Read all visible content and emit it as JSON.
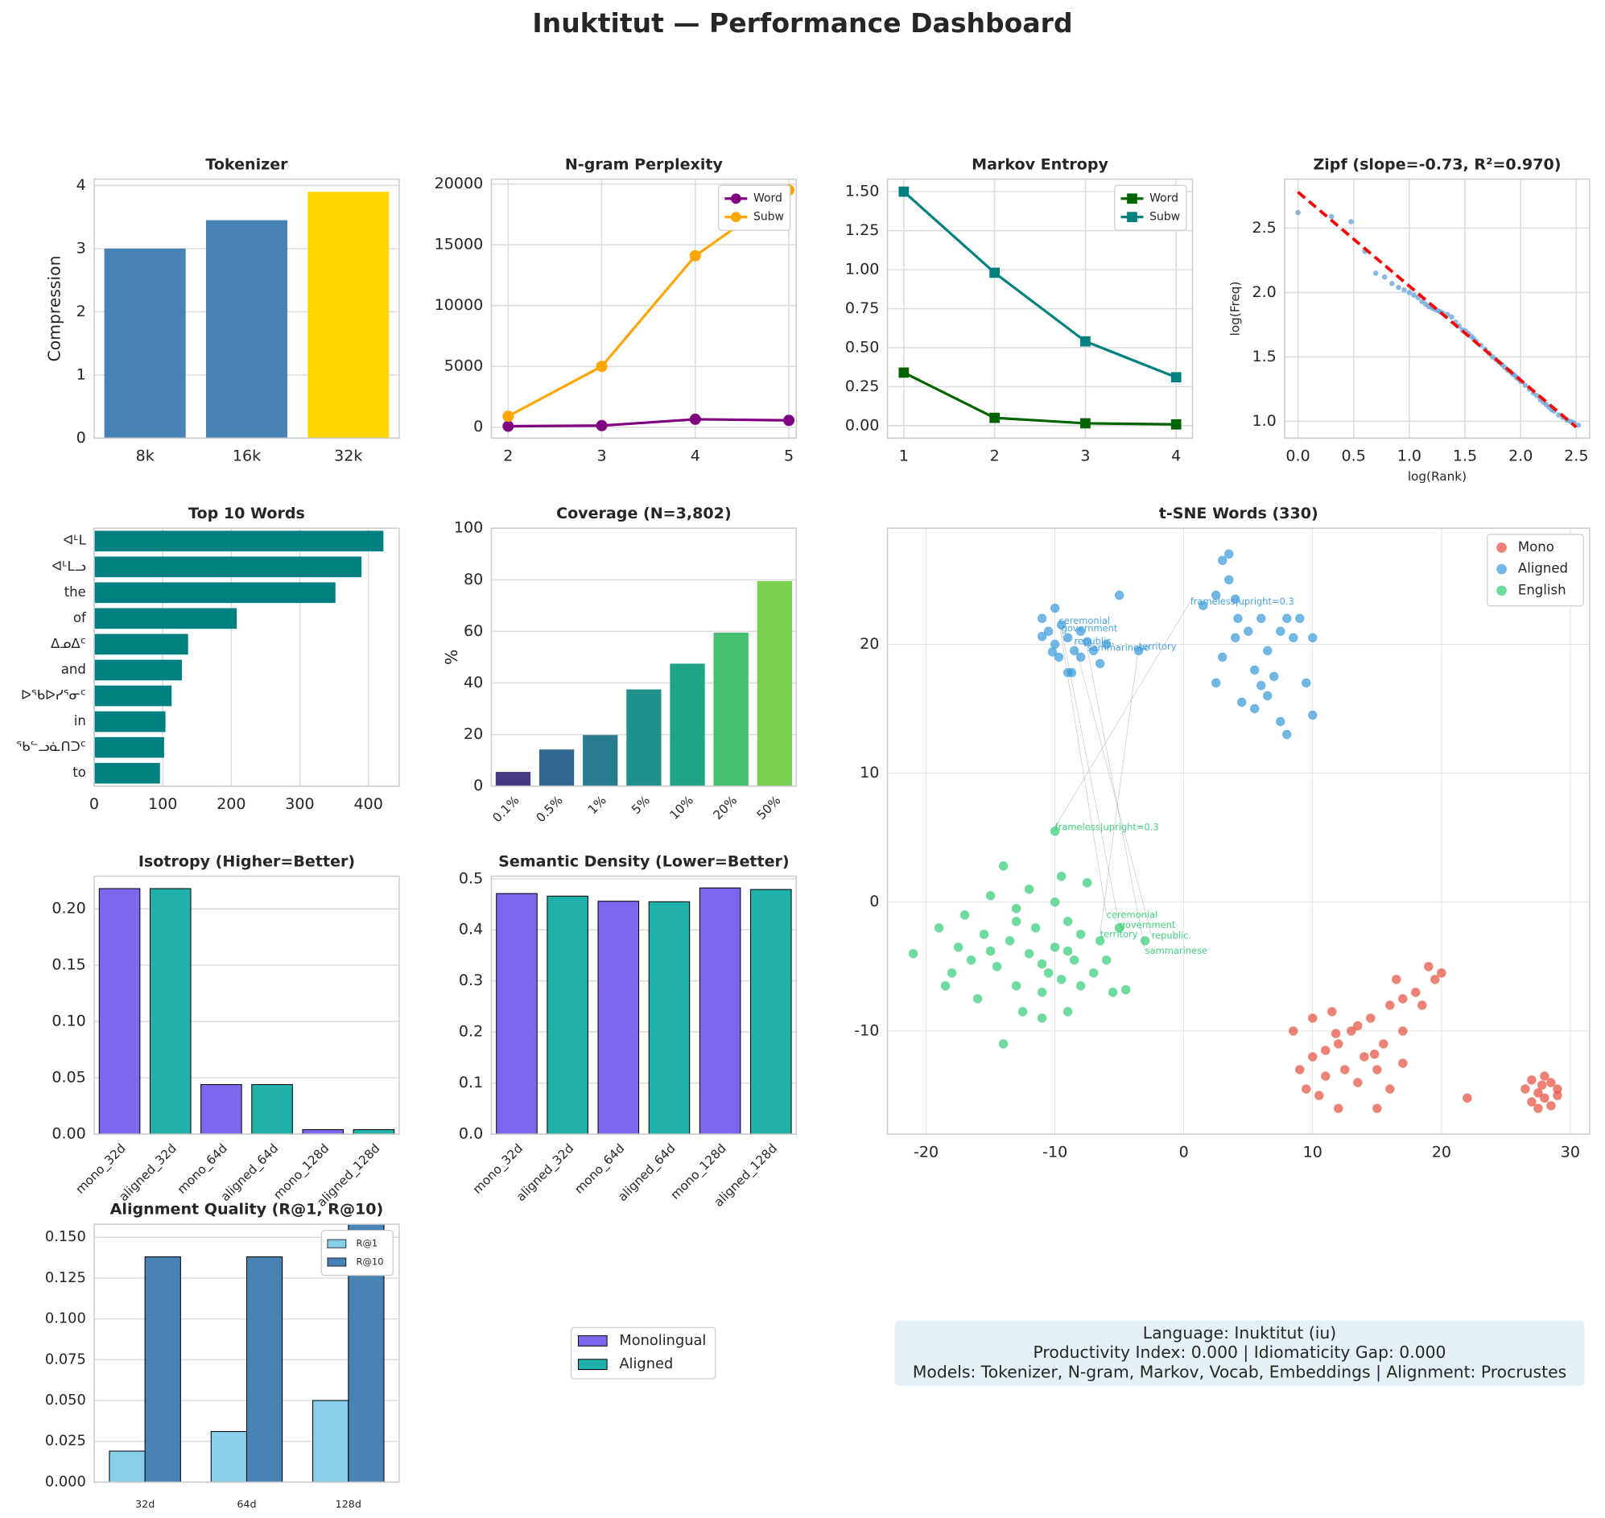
{
  "title": "Inuktitut — Performance Dashboard",
  "legend": [
    {
      "name": "Monolingual",
      "color": "#7b68ee"
    },
    {
      "name": "Aligned",
      "color": "#20b2aa"
    }
  ],
  "info": [
    "Language: Inuktitut (iu)",
    "Productivity Index: 0.000  |  Idiomaticity Gap: 0.000",
    "Models: Tokenizer, N-gram, Markov, Vocab, Embeddings  |  Alignment: Procrustes"
  ],
  "chart_data": [
    {
      "type": "bar",
      "title": "Tokenizer",
      "ylabel": "Compression",
      "categories": [
        "8k",
        "16k",
        "32k"
      ],
      "values": [
        3.0,
        3.45,
        3.9
      ],
      "colors": [
        "#4682b4",
        "#4682b4",
        "#ffd700"
      ],
      "ylim": [
        0,
        4.1
      ],
      "yticks": [
        0,
        1,
        2,
        3,
        4
      ],
      "grid": true
    },
    {
      "type": "line",
      "title": "N-gram Perplexity",
      "x": [
        2,
        3,
        4,
        5
      ],
      "series": [
        {
          "name": "Word",
          "color": "#800080",
          "marker": "circle",
          "values": [
            80,
            130,
            650,
            560
          ]
        },
        {
          "name": "Subw",
          "color": "#ffa500",
          "marker": "circle",
          "values": [
            900,
            5000,
            14100,
            19500
          ]
        }
      ],
      "xlim": [
        1.82,
        5.08
      ],
      "xticks": [
        2,
        3,
        4,
        5
      ],
      "ylim": [
        -900,
        20400
      ],
      "yticks": [
        0,
        5000,
        10000,
        15000,
        20000
      ],
      "legend": "upper right",
      "grid": true
    },
    {
      "type": "line",
      "title": "Markov Entropy",
      "x": [
        1,
        2,
        3,
        4
      ],
      "series": [
        {
          "name": "Word",
          "color": "#006400",
          "marker": "square",
          "values": [
            0.34,
            0.05,
            0.015,
            0.008
          ]
        },
        {
          "name": "Subw",
          "color": "#008080",
          "marker": "square",
          "values": [
            1.5,
            0.98,
            0.54,
            0.31
          ]
        }
      ],
      "xlim": [
        0.82,
        4.18
      ],
      "xticks": [
        1,
        2,
        3,
        4
      ],
      "ylim": [
        -0.08,
        1.58
      ],
      "yticks": [
        {
          "value": 0,
          "label": "0.00"
        },
        {
          "value": 0.25,
          "label": "0.25"
        },
        {
          "value": 0.5,
          "label": "0.50"
        },
        {
          "value": 0.75,
          "label": "0.75"
        },
        {
          "value": 1,
          "label": "1.00"
        },
        {
          "value": 1.25,
          "label": "1.25"
        },
        {
          "value": 1.5,
          "label": "1.50"
        }
      ],
      "legend": "upper right",
      "grid": true
    },
    {
      "type": "scatter",
      "title": "Zipf (slope=-0.73, R²=0.970)",
      "xlabel": "log(Rank)",
      "ylabel": "log(Freq)",
      "color": "#5b9bd5",
      "x": [
        0,
        0.301,
        0.477,
        0.602,
        0.699,
        0.778,
        0.845,
        0.903,
        0.954,
        1.0,
        1.041,
        1.079,
        1.114,
        1.146,
        1.176,
        1.204,
        1.23,
        1.255,
        1.279,
        1.301,
        1.342,
        1.38,
        1.415,
        1.447,
        1.477,
        1.505,
        1.531,
        1.556,
        1.58,
        1.602,
        1.643,
        1.681,
        1.716,
        1.748,
        1.778,
        1.806,
        1.833,
        1.857,
        1.881,
        1.903,
        1.924,
        1.944,
        1.964,
        1.982,
        2.0,
        2.041,
        2.079,
        2.114,
        2.146,
        2.176,
        2.204,
        2.23,
        2.255,
        2.279,
        2.301,
        2.342,
        2.38,
        2.415,
        2.447,
        2.477,
        2.519
      ],
      "y": [
        2.62,
        2.59,
        2.55,
        2.32,
        2.15,
        2.12,
        2.07,
        2.04,
        2.02,
        2.0,
        1.98,
        1.96,
        1.93,
        1.91,
        1.89,
        1.88,
        1.87,
        1.86,
        1.85,
        1.84,
        1.83,
        1.81,
        1.77,
        1.74,
        1.71,
        1.7,
        1.68,
        1.66,
        1.64,
        1.62,
        1.59,
        1.56,
        1.53,
        1.5,
        1.48,
        1.46,
        1.44,
        1.42,
        1.4,
        1.39,
        1.37,
        1.36,
        1.34,
        1.33,
        1.31,
        1.28,
        1.25,
        1.22,
        1.2,
        1.17,
        1.15,
        1.13,
        1.11,
        1.09,
        1.08,
        1.05,
        1.03,
        1.01,
        1.0,
        0.99,
        0.97
      ],
      "fit": {
        "x": [
          0,
          2.5
        ],
        "y": [
          2.78,
          0.955
        ],
        "color": "#ff0000"
      },
      "xlim": [
        -0.12,
        2.62
      ],
      "xticks": [
        {
          "value": 0,
          "label": "0.0"
        },
        {
          "value": 0.5,
          "label": "0.5"
        },
        {
          "value": 1,
          "label": "1.0"
        },
        {
          "value": 1.5,
          "label": "1.5"
        },
        {
          "value": 2,
          "label": "2.0"
        },
        {
          "value": 2.5,
          "label": "2.5"
        }
      ],
      "ylim": [
        0.87,
        2.88
      ],
      "yticks": [
        {
          "value": 1,
          "label": "1.0"
        },
        {
          "value": 1.5,
          "label": "1.5"
        },
        {
          "value": 2,
          "label": "2.0"
        },
        {
          "value": 2.5,
          "label": "2.5"
        }
      ],
      "grid": true
    },
    {
      "type": "barh",
      "title": "Top 10 Words",
      "categories": [
        "ᐊᒻᒪ",
        "ᐊᒻᒪᓗ",
        "the",
        "of",
        "ᐃᓄᐃᑦ",
        "and",
        "ᐅᖃᐅᓯᕐᓂᑦ",
        "in",
        "ᖃᓪᓗᓈᑎᑐᑦ",
        "to"
      ],
      "values": [
        422,
        390,
        352,
        208,
        137,
        128,
        113,
        104,
        102,
        96
      ],
      "color": "#008080",
      "xlim": [
        0,
        445
      ],
      "xticks": [
        0,
        100,
        200,
        300,
        400
      ],
      "grid": true
    },
    {
      "type": "bar",
      "title": "Coverage (N=3,802)",
      "ylabel": "%",
      "categories": [
        "0.1%",
        "0.5%",
        "1%",
        "5%",
        "10%",
        "20%",
        "50%"
      ],
      "values": [
        5.5,
        14.2,
        19.8,
        37.5,
        47.5,
        59.5,
        79.5
      ],
      "colors": [
        "#443983",
        "#31688e",
        "#287c8e",
        "#21918c",
        "#20a386",
        "#44bf70",
        "#7ad151"
      ],
      "ylim": [
        0,
        100
      ],
      "yticks": [
        0,
        20,
        40,
        60,
        80,
        100
      ],
      "xtick_rotation": 45,
      "grid": true
    },
    {
      "type": "scatter",
      "title": "t-SNE Words (330)",
      "legend": "upper right",
      "grid": true,
      "series": [
        {
          "name": "Mono",
          "color": "#e74c3c",
          "x": [
            8.5,
            9,
            9.5,
            10,
            10,
            10.5,
            11,
            11,
            11.5,
            12,
            12,
            12.5,
            13,
            13.5,
            14,
            14.5,
            15,
            15,
            15.5,
            16,
            16,
            16.5,
            17,
            17,
            17,
            18,
            18.5,
            19,
            19.5,
            20,
            22,
            13.5,
            14.8,
            11.8,
            26.5,
            27,
            27,
            27.5,
            27.5,
            28,
            28,
            28.5,
            28.5,
            29,
            29,
            27.8
          ],
          "y": [
            -10,
            -13,
            -14.5,
            -12,
            -9,
            -15,
            -11.5,
            -13.5,
            -8.5,
            -11,
            -16,
            -13,
            -10,
            -14,
            -12,
            -9,
            -16,
            -13,
            -11,
            -8,
            -14.5,
            -6,
            -10,
            -12.5,
            -7.5,
            -7,
            -8,
            -5,
            -6,
            -5.5,
            -15.2,
            -9.6,
            -11.8,
            -10.2,
            -14.5,
            -15.5,
            -13.8,
            -16,
            -14.8,
            -13.5,
            -15.2,
            -14,
            -15.8,
            -14.5,
            -15,
            -14.2
          ]
        },
        {
          "name": "Aligned",
          "color": "#3498db",
          "x": [
            -11,
            -10.5,
            -10,
            -10,
            -9.5,
            -9,
            -9,
            -8.5,
            -8,
            -8,
            -7.5,
            -7,
            -6.5,
            -6,
            -11,
            -10.2,
            -9.7,
            -8.7,
            -5,
            -3.5,
            1.5,
            2.5,
            3,
            3.5,
            3.5,
            4,
            4.2,
            5,
            5.5,
            6,
            6.5,
            6.5,
            7,
            7.5,
            7.5,
            8,
            8,
            8.5,
            9,
            9.5,
            10,
            10,
            3,
            2.5,
            4.5,
            5.5,
            6,
            4
          ],
          "y": [
            22,
            21,
            22.8,
            20,
            21.5,
            20.5,
            17.8,
            19.5,
            21,
            19,
            20.2,
            19.5,
            18.5,
            20,
            20.6,
            19.4,
            19,
            17.8,
            23.8,
            19.5,
            23,
            23.8,
            26.5,
            27,
            25,
            23.5,
            22,
            21,
            18,
            22,
            19.5,
            16,
            17.5,
            21,
            14,
            22,
            13,
            20.5,
            22,
            17,
            20.5,
            14.5,
            19,
            17,
            15.5,
            15,
            16.8,
            20.5
          ]
        },
        {
          "name": "English",
          "color": "#2ecc71",
          "x": [
            -21,
            -19,
            -18.5,
            -18,
            -17.5,
            -17,
            -16.5,
            -16,
            -15.5,
            -15,
            -14.5,
            -14,
            -14,
            -13.5,
            -13,
            -13,
            -12.5,
            -12,
            -12,
            -11.5,
            -11,
            -11,
            -10.5,
            -10,
            -10,
            -9.5,
            -9.5,
            -9,
            -9,
            -8.5,
            -8,
            -8,
            -7.5,
            -7,
            -6.5,
            -6,
            -5.5,
            -5,
            -4.5,
            -3,
            -13,
            -15,
            -11,
            -9,
            -10
          ],
          "y": [
            -4,
            -2,
            -6.5,
            -5.5,
            -3.5,
            -1,
            -4.5,
            -7.5,
            -2.5,
            0.5,
            -5,
            2.8,
            -11,
            -3,
            -6.5,
            -1.5,
            -8.5,
            -4,
            1,
            -2,
            -7,
            -9,
            -5.5,
            -3.5,
            0,
            -6,
            2,
            -1.5,
            -8.5,
            -4.5,
            -2.5,
            -6.5,
            1.5,
            -5.5,
            -3,
            -4.5,
            -7,
            -2,
            -6.8,
            -3,
            -0.5,
            -3.8,
            -4.8,
            -3.8,
            5.5
          ]
        }
      ],
      "annotations": [
        {
          "text": "ceremonial",
          "x": -9.7,
          "y": 21.8,
          "series": 1
        },
        {
          "text": "government",
          "x": -9.5,
          "y": 21.2,
          "series": 1
        },
        {
          "text": "republic.",
          "x": -8.5,
          "y": 20.2,
          "series": 1
        },
        {
          "text": "sammarinese",
          "x": -7.5,
          "y": 19.7,
          "series": 1
        },
        {
          "text": "territory",
          "x": -3.5,
          "y": 19.8,
          "series": 1
        },
        {
          "text": "frameless|upright=0.3",
          "x": 0.5,
          "y": 23.3,
          "series": 1
        },
        {
          "text": "frameless|upright=0.3",
          "x": -10,
          "y": 5.8,
          "series": 2
        },
        {
          "text": "ceremonial",
          "x": -6,
          "y": -1,
          "series": 2
        },
        {
          "text": "government",
          "x": -5,
          "y": -1.8,
          "series": 2
        },
        {
          "text": "republic.",
          "x": -2.5,
          "y": -2.6,
          "series": 2
        },
        {
          "text": "sammarinese",
          "x": -3,
          "y": -3.8,
          "series": 2
        },
        {
          "text": "territory",
          "x": -6.5,
          "y": -2.5,
          "series": 2
        }
      ],
      "xlim": [
        -23,
        31.5
      ],
      "xticks": [
        -20,
        -10,
        0,
        10,
        20,
        30
      ],
      "ylim": [
        -18,
        29
      ],
      "yticks": [
        -10,
        0,
        10,
        20
      ]
    },
    {
      "type": "bar",
      "title": "Isotropy (Higher=Better)",
      "categories": [
        "mono_32d",
        "aligned_32d",
        "mono_64d",
        "aligned_64d",
        "mono_128d",
        "aligned_128d"
      ],
      "values": [
        0.218,
        0.218,
        0.044,
        0.044,
        0.004,
        0.004
      ],
      "colors": [
        "#7b68ee",
        "#20b2aa",
        "#7b68ee",
        "#20b2aa",
        "#7b68ee",
        "#20b2aa"
      ],
      "edgecolor": "#000000",
      "ylim": [
        0,
        0.229
      ],
      "yticks": [
        {
          "value": 0,
          "label": "0.00"
        },
        {
          "value": 0.05,
          "label": "0.05"
        },
        {
          "value": 0.1,
          "label": "0.10"
        },
        {
          "value": 0.15,
          "label": "0.15"
        },
        {
          "value": 0.2,
          "label": "0.20"
        }
      ],
      "xtick_rotation": 45,
      "grid": true
    },
    {
      "type": "bar",
      "title": "Semantic Density (Lower=Better)",
      "categories": [
        "mono_32d",
        "aligned_32d",
        "mono_64d",
        "aligned_64d",
        "mono_128d",
        "aligned_128d"
      ],
      "values": [
        0.471,
        0.466,
        0.456,
        0.455,
        0.482,
        0.479
      ],
      "colors": [
        "#7b68ee",
        "#20b2aa",
        "#7b68ee",
        "#20b2aa",
        "#7b68ee",
        "#20b2aa"
      ],
      "edgecolor": "#000000",
      "ylim": [
        0,
        0.505
      ],
      "yticks": [
        {
          "value": 0,
          "label": "0.0"
        },
        {
          "value": 0.1,
          "label": "0.1"
        },
        {
          "value": 0.2,
          "label": "0.2"
        },
        {
          "value": 0.3,
          "label": "0.3"
        },
        {
          "value": 0.4,
          "label": "0.4"
        },
        {
          "value": 0.5,
          "label": "0.5"
        }
      ],
      "xtick_rotation": 45,
      "grid": true
    },
    {
      "type": "grouped_bar",
      "title": "Alignment Quality (R@1, R@10)",
      "categories": [
        "32d",
        "64d",
        "128d"
      ],
      "series": [
        {
          "name": "R@1",
          "color": "#87ceeb",
          "values": [
            0.019,
            0.031,
            0.05
          ]
        },
        {
          "name": "R@10",
          "color": "#4682b4",
          "values": [
            0.138,
            0.138,
            0.16
          ]
        }
      ],
      "edgecolor": "#000000",
      "ylim": [
        0,
        0.158
      ],
      "yticks": [
        {
          "value": 0,
          "label": "0.000"
        },
        {
          "value": 0.025,
          "label": "0.025"
        },
        {
          "value": 0.05,
          "label": "0.050"
        },
        {
          "value": 0.075,
          "label": "0.075"
        },
        {
          "value": 0.1,
          "label": "0.100"
        },
        {
          "value": 0.125,
          "label": "0.125"
        },
        {
          "value": 0.15,
          "label": "0.150"
        }
      ],
      "legend": "upper right",
      "grid": true
    }
  ]
}
